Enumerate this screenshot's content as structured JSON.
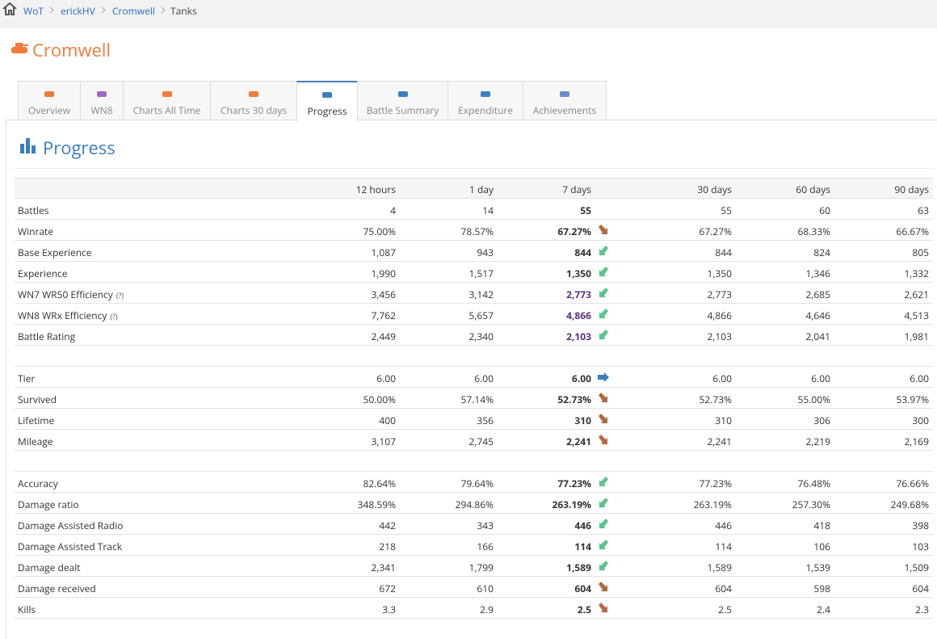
{
  "breadcrumb": [
    "WoT",
    "erickHV",
    "Cromwell",
    "Tanks"
  ],
  "title": "Cromwell",
  "tabs": [
    "Overview",
    "WN8",
    "Charts All Time",
    "Charts 30 days",
    "Progress",
    "Battle Summary",
    "Expenditure",
    "Achievements"
  ],
  "section_title": "Progress",
  "table": {
    "header": [
      "12 hours",
      "1 day",
      "7 days",
      "30 days",
      "60 days",
      "90 days"
    ],
    "groups": [
      {
        "rows": [
          {
            "label": "Battles",
            "cells": [
              "4",
              "14",
              "55",
              "55",
              "60",
              "63"
            ]
          },
          {
            "label": "Winrate",
            "cells": [
              "75.00%",
              "78.57%",
              "67.27%",
              "67.27%",
              "68.33%",
              "66.67%"
            ]
          },
          {
            "label": "Base Experience",
            "cells": [
              "1,087",
              "943",
              "844",
              "844",
              "824",
              "805"
            ]
          },
          {
            "label": "Experience",
            "cells": [
              "1,990",
              "1,517",
              "1,350",
              "1,350",
              "1,346",
              "1,332"
            ]
          },
          {
            "label": "WN7 WR50 Efficiency",
            "note": "(?)",
            "cells": [
              "3,456",
              "3,142",
              "2,773",
              "2,773",
              "2,685",
              "2,621"
            ]
          },
          {
            "label": "WN8 WRx Efficiency",
            "note": "(?)",
            "cells": [
              "7,762",
              "5,657",
              "4,866",
              "4,866",
              "4,646",
              "4,513"
            ]
          },
          {
            "label": "Battle Rating",
            "cells": [
              "2,449",
              "2,340",
              "2,103",
              "2,103",
              "2,041",
              "1,981"
            ]
          }
        ]
      },
      {
        "rows": [
          {
            "label": "Tier",
            "cells": [
              "6.00",
              "6.00",
              "6.00",
              "6.00",
              "6.00",
              "6.00"
            ]
          },
          {
            "label": "Survived",
            "cells": [
              "50.00%",
              "57.14%",
              "52.73%",
              "52.73%",
              "55.00%",
              "53.97%"
            ]
          },
          {
            "label": "Lifetime",
            "cells": [
              "400",
              "356",
              "310",
              "310",
              "306",
              "300"
            ]
          },
          {
            "label": "Mileage",
            "cells": [
              "3,107",
              "2,745",
              "2,241",
              "2,241",
              "2,219",
              "2,169"
            ]
          }
        ]
      },
      {
        "rows": [
          {
            "label": "Accuracy",
            "cells": [
              "82.64%",
              "79.64%",
              "77.23%",
              "77.23%",
              "76.48%",
              "76.66%"
            ]
          },
          {
            "label": "Damage ratio",
            "cells": [
              "348.59%",
              "294.86%",
              "263.19%",
              "263.19%",
              "257.30%",
              "249.68%"
            ]
          },
          {
            "label": "Damage Assisted Radio",
            "cells": [
              "442",
              "343",
              "446",
              "446",
              "418",
              "398"
            ]
          },
          {
            "label": "Damage Assisted Track",
            "cells": [
              "218",
              "166",
              "114",
              "114",
              "106",
              "103"
            ]
          },
          {
            "label": "Damage dealt",
            "cells": [
              "2,341",
              "1,799",
              "1,589",
              "1,589",
              "1,539",
              "1,509"
            ]
          },
          {
            "label": "Damage received",
            "cells": [
              "672",
              "610",
              "604",
              "604",
              "598",
              "604"
            ]
          },
          {
            "label": "Kills",
            "cells": [
              "3.3",
              "2.9",
              "2.5",
              "2.5",
              "2.4",
              "2.3"
            ]
          }
        ]
      }
    ]
  }
}
